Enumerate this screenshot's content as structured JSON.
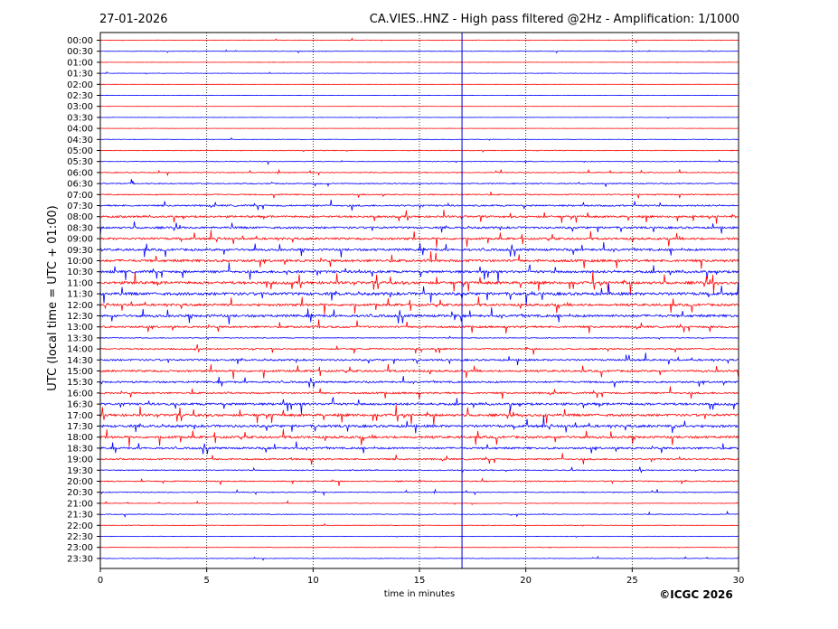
{
  "header": {
    "date": "27-01-2026",
    "title": "CA.VIES..HNZ - High pass filtered @2Hz - Amplification: 1/1000"
  },
  "footer": {
    "copyright": "©ICGC 2026"
  },
  "chart_data": {
    "type": "line",
    "title": "CA.VIES..HNZ - High pass filtered @2Hz - Amplification: 1/1000",
    "xlabel": "time in minutes",
    "ylabel": "UTC (local time = UTC + 01:00)",
    "xlim": [
      0,
      30
    ],
    "x_ticks": [
      0,
      5,
      10,
      15,
      20,
      25,
      30
    ],
    "x_tick_labels": [
      "0",
      "5",
      "10",
      "15",
      "20",
      "25",
      "30"
    ],
    "vertical_gridlines_dotted": [
      5,
      10,
      15,
      20,
      25
    ],
    "highlight_line_x_minutes": 17,
    "rows": [
      "00:00",
      "00:30",
      "01:00",
      "01:30",
      "02:00",
      "02:30",
      "03:00",
      "03:30",
      "04:00",
      "04:30",
      "05:00",
      "05:30",
      "06:00",
      "06:30",
      "07:00",
      "07:30",
      "08:00",
      "08:30",
      "09:00",
      "09:30",
      "10:00",
      "10:30",
      "11:00",
      "11:30",
      "12:00",
      "12:30",
      "13:00",
      "13:30",
      "14:00",
      "14:30",
      "15:00",
      "15:30",
      "16:00",
      "16:30",
      "17:00",
      "17:30",
      "18:00",
      "18:30",
      "19:00",
      "19:30",
      "20:00",
      "20:30",
      "21:00",
      "21:30",
      "22:00",
      "22:30",
      "23:00",
      "23:30"
    ],
    "row_colors": [
      "#ff0000",
      "#0000ff"
    ],
    "row_activity": [
      0.6,
      0.5,
      0.2,
      0.4,
      0.2,
      0.2,
      0.2,
      0.3,
      0.3,
      0.6,
      0.8,
      0.7,
      1.0,
      1.2,
      1.3,
      1.8,
      2.2,
      2.3,
      2.4,
      2.5,
      2.8,
      2.8,
      3.0,
      3.2,
      2.6,
      2.8,
      2.2,
      0.9,
      1.6,
      2.0,
      2.2,
      2.0,
      2.0,
      2.6,
      2.8,
      2.8,
      2.6,
      2.2,
      1.8,
      1.2,
      1.3,
      1.0,
      0.6,
      0.9,
      0.6,
      0.5,
      0.5,
      0.6
    ],
    "grid": false,
    "legend": "none",
    "colors": {
      "even_rows": "#ff0000",
      "odd_rows": "#0000ff",
      "highlight": "#0000cc"
    }
  }
}
